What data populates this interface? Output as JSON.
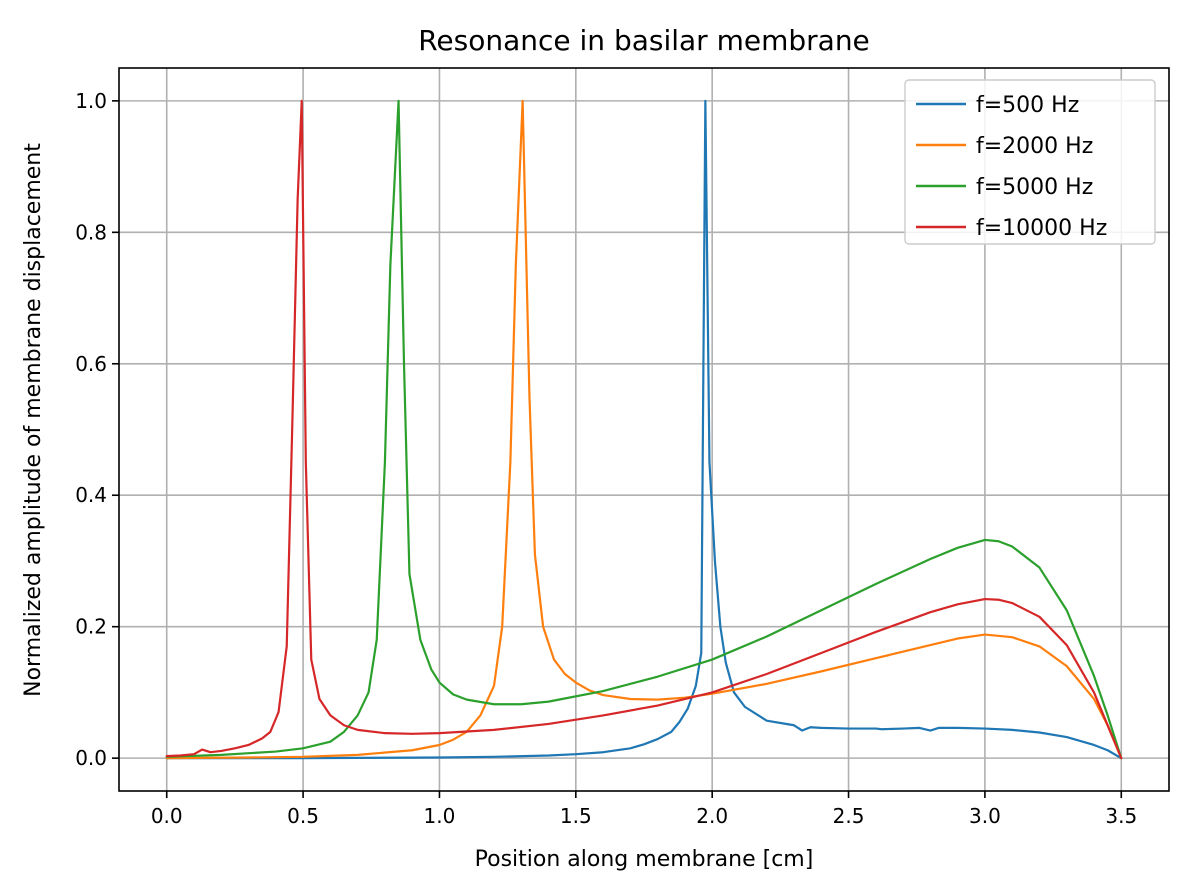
{
  "chart_data": {
    "type": "line",
    "title": "Resonance in basilar membrane",
    "xlabel": "Position along membrane [cm]",
    "ylabel": "Normalized amplitude of membrane displacement",
    "xlim": [
      -0.175,
      3.675
    ],
    "ylim": [
      -0.05,
      1.05
    ],
    "xticks": [
      0.0,
      0.5,
      1.0,
      1.5,
      2.0,
      2.5,
      3.0,
      3.5
    ],
    "xtick_labels": [
      "0.0",
      "0.5",
      "1.0",
      "1.5",
      "2.0",
      "2.5",
      "3.0",
      "3.5"
    ],
    "yticks": [
      0.0,
      0.2,
      0.4,
      0.6,
      0.8,
      1.0
    ],
    "ytick_labels": [
      "0.0",
      "0.2",
      "0.4",
      "0.6",
      "0.8",
      "1.0"
    ],
    "grid": true,
    "legend_position": "top-right",
    "series": [
      {
        "name": "f=500 Hz",
        "color": "#1f77b4",
        "x": [
          0.0,
          0.5,
          1.0,
          1.2,
          1.4,
          1.5,
          1.6,
          1.7,
          1.75,
          1.8,
          1.85,
          1.88,
          1.91,
          1.94,
          1.96,
          1.975,
          1.99,
          2.01,
          2.03,
          2.05,
          2.08,
          2.12,
          2.2,
          2.3,
          2.33,
          2.36,
          2.4,
          2.5,
          2.6,
          2.62,
          2.7,
          2.76,
          2.8,
          2.83,
          2.9,
          3.0,
          3.1,
          3.2,
          3.3,
          3.4,
          3.45,
          3.5
        ],
        "y": [
          0.0,
          0.0,
          0.001,
          0.002,
          0.004,
          0.006,
          0.009,
          0.015,
          0.021,
          0.029,
          0.04,
          0.055,
          0.075,
          0.11,
          0.16,
          1.0,
          0.45,
          0.3,
          0.2,
          0.145,
          0.1,
          0.078,
          0.057,
          0.05,
          0.042,
          0.047,
          0.046,
          0.045,
          0.045,
          0.044,
          0.045,
          0.046,
          0.042,
          0.046,
          0.046,
          0.045,
          0.043,
          0.039,
          0.032,
          0.02,
          0.012,
          0.0
        ]
      },
      {
        "name": "f=2000 Hz",
        "color": "#ff7f0e",
        "x": [
          0.0,
          0.3,
          0.5,
          0.7,
          0.9,
          1.0,
          1.05,
          1.1,
          1.15,
          1.2,
          1.23,
          1.26,
          1.28,
          1.305,
          1.33,
          1.35,
          1.38,
          1.42,
          1.46,
          1.5,
          1.55,
          1.6,
          1.7,
          1.8,
          1.9,
          2.0,
          2.2,
          2.4,
          2.6,
          2.8,
          2.9,
          3.0,
          3.1,
          3.2,
          3.3,
          3.4,
          3.45,
          3.5
        ],
        "y": [
          0.0,
          0.001,
          0.002,
          0.005,
          0.012,
          0.02,
          0.028,
          0.04,
          0.065,
          0.11,
          0.2,
          0.45,
          0.75,
          1.0,
          0.55,
          0.31,
          0.2,
          0.15,
          0.128,
          0.115,
          0.103,
          0.096,
          0.09,
          0.089,
          0.092,
          0.098,
          0.113,
          0.132,
          0.152,
          0.172,
          0.182,
          0.188,
          0.184,
          0.17,
          0.14,
          0.09,
          0.05,
          0.0
        ]
      },
      {
        "name": "f=5000 Hz",
        "color": "#2ca02c",
        "x": [
          0.0,
          0.2,
          0.4,
          0.5,
          0.6,
          0.65,
          0.7,
          0.74,
          0.77,
          0.8,
          0.82,
          0.85,
          0.87,
          0.89,
          0.93,
          0.97,
          1.0,
          1.05,
          1.1,
          1.2,
          1.3,
          1.4,
          1.6,
          1.8,
          2.0,
          2.2,
          2.4,
          2.6,
          2.8,
          2.9,
          3.0,
          3.05,
          3.1,
          3.2,
          3.3,
          3.4,
          3.45,
          3.5
        ],
        "y": [
          0.002,
          0.005,
          0.01,
          0.015,
          0.025,
          0.04,
          0.065,
          0.1,
          0.18,
          0.45,
          0.75,
          1.0,
          0.6,
          0.28,
          0.18,
          0.135,
          0.115,
          0.097,
          0.089,
          0.082,
          0.082,
          0.086,
          0.102,
          0.124,
          0.15,
          0.185,
          0.225,
          0.265,
          0.303,
          0.32,
          0.332,
          0.33,
          0.322,
          0.29,
          0.225,
          0.125,
          0.065,
          0.0
        ]
      },
      {
        "name": "f=10000 Hz",
        "color": "#d62728",
        "x": [
          0.0,
          0.05,
          0.1,
          0.13,
          0.16,
          0.2,
          0.25,
          0.3,
          0.35,
          0.38,
          0.41,
          0.44,
          0.46,
          0.48,
          0.495,
          0.51,
          0.53,
          0.56,
          0.6,
          0.65,
          0.7,
          0.8,
          0.9,
          1.0,
          1.2,
          1.4,
          1.6,
          1.8,
          2.0,
          2.2,
          2.4,
          2.6,
          2.8,
          2.9,
          3.0,
          3.05,
          3.1,
          3.2,
          3.3,
          3.4,
          3.45,
          3.5
        ],
        "y": [
          0.003,
          0.004,
          0.006,
          0.013,
          0.009,
          0.011,
          0.015,
          0.02,
          0.03,
          0.04,
          0.07,
          0.17,
          0.5,
          0.85,
          1.0,
          0.45,
          0.15,
          0.09,
          0.065,
          0.05,
          0.043,
          0.038,
          0.037,
          0.038,
          0.043,
          0.052,
          0.065,
          0.08,
          0.1,
          0.128,
          0.16,
          0.192,
          0.222,
          0.234,
          0.242,
          0.241,
          0.236,
          0.215,
          0.172,
          0.1,
          0.05,
          0.0
        ]
      }
    ]
  }
}
